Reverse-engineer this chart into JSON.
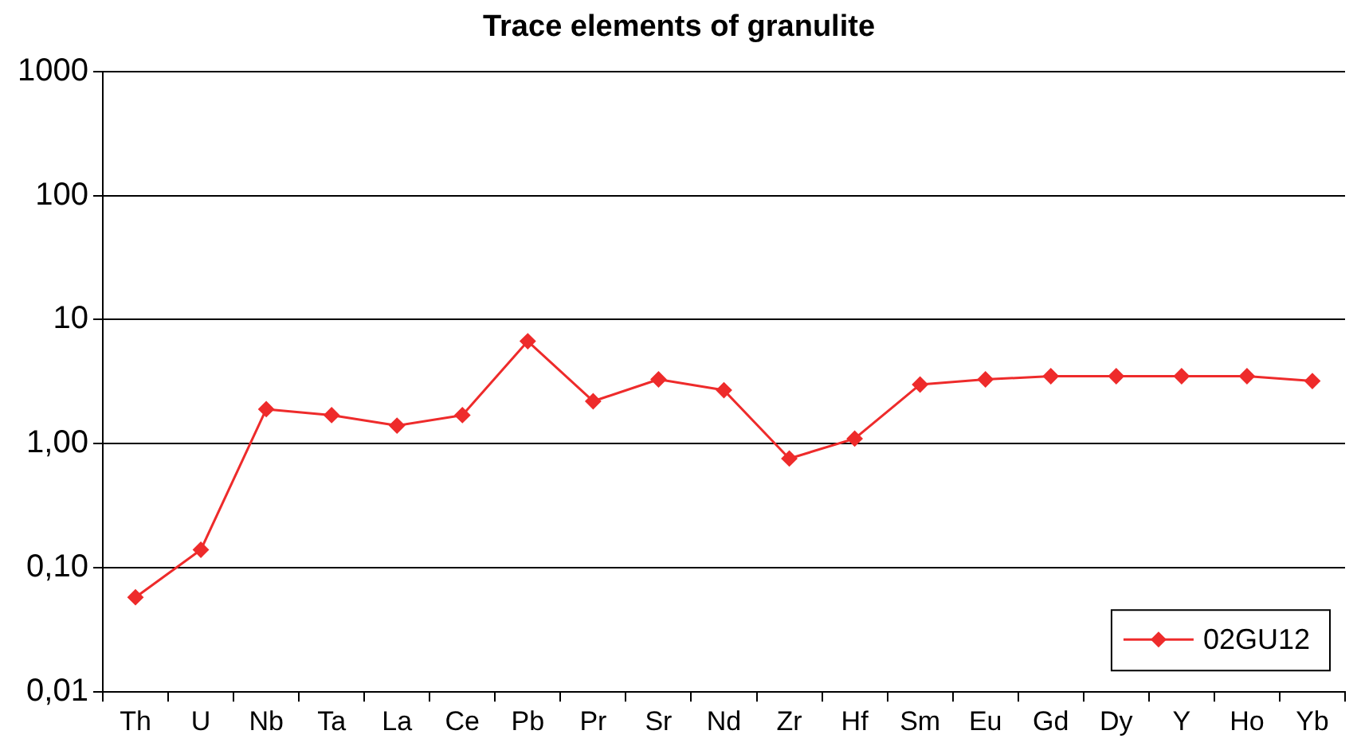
{
  "chart_data": {
    "type": "line",
    "title": "Trace elements of granulite",
    "categories": [
      "Th",
      "U",
      "Nb",
      "Ta",
      "La",
      "Ce",
      "Pb",
      "Pr",
      "Sr",
      "Nd",
      "Zr",
      "Hf",
      "Sm",
      "Eu",
      "Gd",
      "Dy",
      "Y",
      "Ho",
      "Yb"
    ],
    "series": [
      {
        "name": "02GU12",
        "color": "#ee2b2b",
        "values": [
          0.058,
          0.14,
          1.9,
          1.7,
          1.4,
          1.7,
          6.7,
          2.2,
          3.3,
          2.7,
          0.76,
          1.1,
          3.0,
          3.3,
          3.5,
          3.5,
          3.5,
          3.5,
          3.2
        ]
      }
    ],
    "log": "y",
    "ylim": [
      0.01,
      1000
    ],
    "yticks": [
      {
        "value": 0.01,
        "label": "0,01"
      },
      {
        "value": 0.1,
        "label": "0,10"
      },
      {
        "value": 1,
        "label": "1,00"
      },
      10,
      100,
      1000
    ],
    "grid": "y",
    "legend": "bottom right",
    "marker": "diamond",
    "line_style": "solid"
  }
}
